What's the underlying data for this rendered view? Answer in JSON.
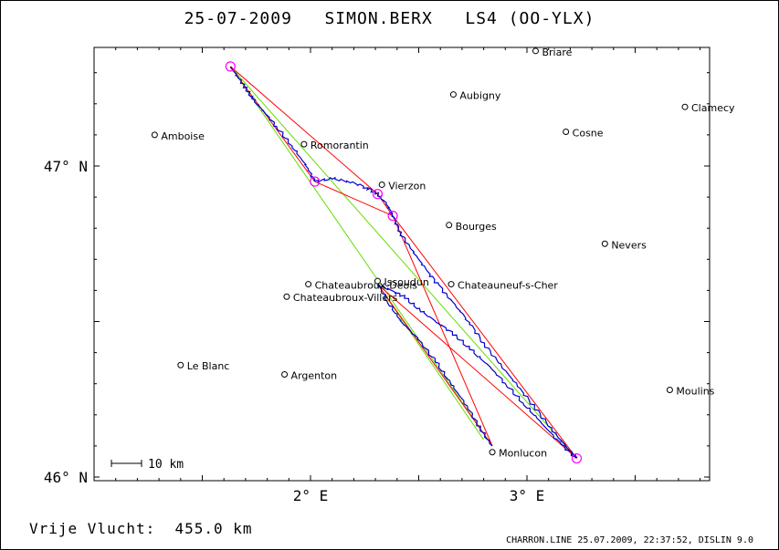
{
  "title": {
    "date": "25-07-2009",
    "pilot": "SIMON.BERX",
    "aircraft": "LS4 (OO-YLX)"
  },
  "axes": {
    "lat_labels": [
      {
        "value": 47,
        "text": "47° N"
      },
      {
        "value": 46,
        "text": "46° N"
      }
    ],
    "lon_labels": [
      {
        "value": 2,
        "text": "2° E"
      },
      {
        "value": 3,
        "text": "3° E"
      }
    ],
    "lon_range": [
      1.0,
      3.8
    ],
    "lat_range": [
      45.98,
      47.38
    ]
  },
  "towns": [
    {
      "name": "Briare",
      "lon": 3.04,
      "lat": 47.37
    },
    {
      "name": "Aubigny",
      "lon": 2.66,
      "lat": 47.23
    },
    {
      "name": "Clamecy",
      "lon": 3.73,
      "lat": 47.19
    },
    {
      "name": "Amboise",
      "lon": 1.28,
      "lat": 47.1
    },
    {
      "name": "Cosne",
      "lon": 3.18,
      "lat": 47.11
    },
    {
      "name": "Romorantin",
      "lon": 1.97,
      "lat": 47.07
    },
    {
      "name": "Vierzon",
      "lon": 2.33,
      "lat": 46.94
    },
    {
      "name": "Bourges",
      "lon": 2.64,
      "lat": 46.81
    },
    {
      "name": "Nevers",
      "lon": 3.36,
      "lat": 46.75
    },
    {
      "name": "Issoudun",
      "lon": 2.31,
      "lat": 46.63
    },
    {
      "name": "Chateaubroux-Deols",
      "lon": 1.99,
      "lat": 46.62
    },
    {
      "name": "Chateauneuf-s-Cher",
      "lon": 2.65,
      "lat": 46.62
    },
    {
      "name": "Chateaubroux-Villers",
      "lon": 1.89,
      "lat": 46.58
    },
    {
      "name": "Le Blanc",
      "lon": 1.4,
      "lat": 46.36
    },
    {
      "name": "Argenton",
      "lon": 1.88,
      "lat": 46.33
    },
    {
      "name": "Moulins",
      "lon": 3.66,
      "lat": 46.28
    },
    {
      "name": "Monlucon",
      "lon": 2.84,
      "lat": 46.08
    }
  ],
  "turnpoints": [
    {
      "lon": 1.63,
      "lat": 47.32
    },
    {
      "lon": 2.02,
      "lat": 46.95
    },
    {
      "lon": 2.31,
      "lat": 46.91
    },
    {
      "lon": 2.38,
      "lat": 46.84
    },
    {
      "lon": 3.23,
      "lat": 46.06
    }
  ],
  "red_legs": [
    [
      {
        "lon": 1.63,
        "lat": 47.32
      },
      {
        "lon": 2.31,
        "lat": 46.91
      }
    ],
    [
      {
        "lon": 2.31,
        "lat": 46.91
      },
      {
        "lon": 2.38,
        "lat": 46.84
      }
    ],
    [
      {
        "lon": 2.38,
        "lat": 46.84
      },
      {
        "lon": 3.23,
        "lat": 46.06
      }
    ],
    [
      {
        "lon": 1.63,
        "lat": 47.32
      },
      {
        "lon": 2.02,
        "lat": 46.95
      }
    ],
    [
      {
        "lon": 2.02,
        "lat": 46.95
      },
      {
        "lon": 2.38,
        "lat": 46.84
      }
    ],
    [
      {
        "lon": 2.38,
        "lat": 46.84
      },
      {
        "lon": 2.84,
        "lat": 46.1
      }
    ],
    [
      {
        "lon": 2.31,
        "lat": 46.62
      },
      {
        "lon": 3.23,
        "lat": 46.06
      }
    ],
    [
      {
        "lon": 2.31,
        "lat": 46.62
      },
      {
        "lon": 2.84,
        "lat": 46.1
      }
    ]
  ],
  "green_legs": [
    [
      {
        "lon": 1.63,
        "lat": 47.32
      },
      {
        "lon": 2.84,
        "lat": 46.1
      }
    ],
    [
      {
        "lon": 1.63,
        "lat": 47.32
      },
      {
        "lon": 3.23,
        "lat": 46.06
      }
    ],
    [
      {
        "lon": 2.31,
        "lat": 46.62
      },
      {
        "lon": 2.8,
        "lat": 46.12
      }
    ]
  ],
  "track": [
    {
      "lon": 1.63,
      "lat": 47.32
    },
    {
      "lon": 1.66,
      "lat": 47.29
    },
    {
      "lon": 1.7,
      "lat": 47.25
    },
    {
      "lon": 1.74,
      "lat": 47.21
    },
    {
      "lon": 1.79,
      "lat": 47.17
    },
    {
      "lon": 1.85,
      "lat": 47.12
    },
    {
      "lon": 1.92,
      "lat": 47.06
    },
    {
      "lon": 1.98,
      "lat": 47.0
    },
    {
      "lon": 2.02,
      "lat": 46.95
    },
    {
      "lon": 2.1,
      "lat": 46.96
    },
    {
      "lon": 2.18,
      "lat": 46.95
    },
    {
      "lon": 2.26,
      "lat": 46.93
    },
    {
      "lon": 2.31,
      "lat": 46.91
    },
    {
      "lon": 2.35,
      "lat": 46.88
    },
    {
      "lon": 2.38,
      "lat": 46.84
    },
    {
      "lon": 2.42,
      "lat": 46.78
    },
    {
      "lon": 2.48,
      "lat": 46.72
    },
    {
      "lon": 2.54,
      "lat": 46.66
    },
    {
      "lon": 2.6,
      "lat": 46.61
    },
    {
      "lon": 2.66,
      "lat": 46.56
    },
    {
      "lon": 2.73,
      "lat": 46.5
    },
    {
      "lon": 2.8,
      "lat": 46.43
    },
    {
      "lon": 2.88,
      "lat": 46.36
    },
    {
      "lon": 2.96,
      "lat": 46.29
    },
    {
      "lon": 3.04,
      "lat": 46.22
    },
    {
      "lon": 3.12,
      "lat": 46.15
    },
    {
      "lon": 3.19,
      "lat": 46.09
    },
    {
      "lon": 3.23,
      "lat": 46.06
    },
    {
      "lon": 3.15,
      "lat": 46.11
    },
    {
      "lon": 3.06,
      "lat": 46.18
    },
    {
      "lon": 2.98,
      "lat": 46.24
    },
    {
      "lon": 2.9,
      "lat": 46.3
    },
    {
      "lon": 2.82,
      "lat": 46.36
    },
    {
      "lon": 2.74,
      "lat": 46.41
    },
    {
      "lon": 2.66,
      "lat": 46.46
    },
    {
      "lon": 2.58,
      "lat": 46.5
    },
    {
      "lon": 2.5,
      "lat": 46.54
    },
    {
      "lon": 2.43,
      "lat": 46.58
    },
    {
      "lon": 2.37,
      "lat": 46.6
    },
    {
      "lon": 2.31,
      "lat": 46.62
    },
    {
      "lon": 2.36,
      "lat": 46.56
    },
    {
      "lon": 2.42,
      "lat": 46.5
    },
    {
      "lon": 2.5,
      "lat": 46.44
    },
    {
      "lon": 2.58,
      "lat": 46.37
    },
    {
      "lon": 2.65,
      "lat": 46.3
    },
    {
      "lon": 2.72,
      "lat": 46.23
    },
    {
      "lon": 2.78,
      "lat": 46.16
    },
    {
      "lon": 2.84,
      "lat": 46.1
    }
  ],
  "scale_bar": {
    "label": "10 km"
  },
  "footer": {
    "left": "Vrije Vlucht:  455.0 km",
    "right": "CHARRON.LINE 25.07.2009, 22:37:52, DISLIN 9.0"
  },
  "colors": {
    "track": "#0000cc",
    "red_leg": "#ff0000",
    "green_leg": "#66dd00",
    "turnpoint": "#ff00ff",
    "axes": "#000000"
  }
}
